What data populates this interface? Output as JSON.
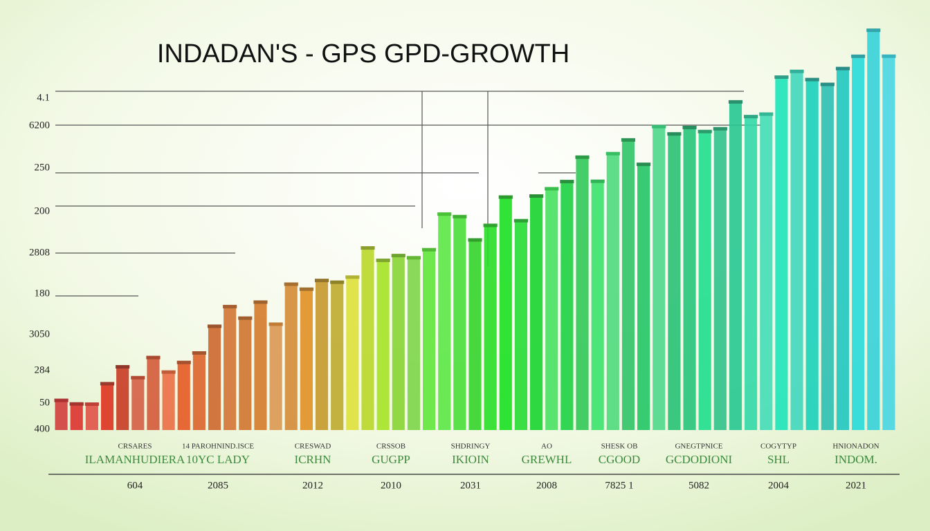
{
  "title": "INDADAN'S - GPS GPD-GROWTH",
  "y_labels": [
    "4.1",
    "6200",
    "250",
    "200",
    "2808",
    "180",
    "3050",
    "284",
    "50",
    "400"
  ],
  "groups": [
    {
      "top": "CRSARES",
      "name": "ILAMANHUDIERA",
      "year": "604"
    },
    {
      "top": "14 PAROHNIND.ISCE",
      "name": "10YC LADY",
      "year": "2085"
    },
    {
      "top": "CRESWAD",
      "name": "ICRHN",
      "year": "2012"
    },
    {
      "top": "CRSSOB",
      "name": "GUGPP",
      "year": "2010"
    },
    {
      "top": "SHDRINGY",
      "name": "IKIOIN",
      "year": "2031"
    },
    {
      "top": "AO",
      "name": "GREWHL",
      "year": "2008"
    },
    {
      "top": "SHESK OB",
      "name": "CGOOD",
      "year": "7825 1"
    },
    {
      "top": "GNEGTPNICE",
      "name": "GCDODIONI",
      "year": "5082"
    },
    {
      "top": "COGYTYP",
      "name": "SHL",
      "year": "2004"
    },
    {
      "top": "HNIONADON",
      "name": "INDOM.",
      "year": "2021"
    }
  ]
}
